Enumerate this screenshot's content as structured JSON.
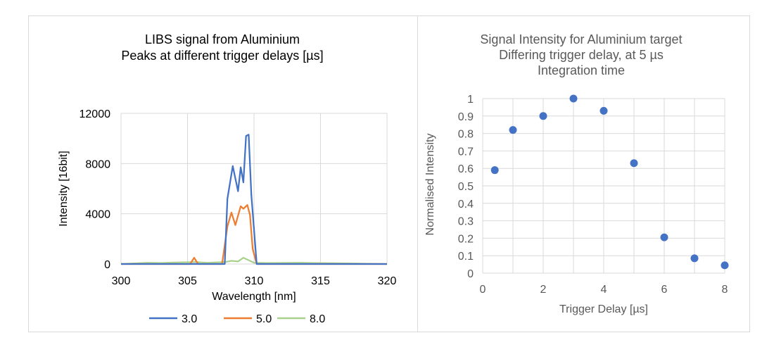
{
  "chart_data": [
    {
      "type": "line",
      "title": [
        "LIBS signal from Aluminium",
        "Peaks at different trigger delays [µs]"
      ],
      "xlabel": "Wavelength [nm]",
      "ylabel": "Intensity [16bit]",
      "xlim": [
        300,
        320
      ],
      "ylim": [
        0,
        12000
      ],
      "xticks": [
        300,
        305,
        310,
        315,
        320
      ],
      "yticks": [
        0,
        4000,
        8000,
        12000
      ],
      "xtick_labels": [
        "300",
        "305",
        "310",
        "315",
        "320"
      ],
      "ytick_labels": [
        "0",
        "4000",
        "8000",
        "12000"
      ],
      "grid": true,
      "legend": "bottom",
      "series": [
        {
          "name": "3.0",
          "color": "#4472c4",
          "x": [
            300,
            302,
            305.5,
            307.8,
            308.0,
            308.4,
            308.8,
            309.0,
            309.2,
            309.4,
            309.6,
            309.8,
            310.2,
            312,
            315,
            320
          ],
          "y": [
            0,
            0,
            0,
            0,
            5200,
            7800,
            5800,
            7700,
            6500,
            10200,
            10300,
            5500,
            0,
            0,
            0,
            0
          ]
        },
        {
          "name": "5.0",
          "color": "#ed7d31",
          "x": [
            300,
            305.2,
            305.5,
            305.8,
            307.6,
            308.0,
            308.3,
            308.6,
            309.0,
            309.2,
            309.5,
            309.7,
            309.9,
            310.2,
            312,
            320
          ],
          "y": [
            0,
            0,
            500,
            0,
            0,
            3000,
            4100,
            3100,
            4600,
            4400,
            4700,
            3900,
            1200,
            0,
            0,
            0
          ]
        },
        {
          "name": "8.0",
          "color": "#a9d18e",
          "x": [
            300,
            302,
            303,
            304,
            305.6,
            306.5,
            307.8,
            308.3,
            308.8,
            309.2,
            309.6,
            310,
            311,
            313.5,
            314.5,
            316,
            320
          ],
          "y": [
            0,
            100,
            80,
            120,
            150,
            100,
            150,
            250,
            200,
            500,
            300,
            100,
            80,
            100,
            80,
            60,
            0
          ]
        }
      ]
    },
    {
      "type": "scatter",
      "title": [
        "Signal Intensity for Aluminium  target",
        "Differing trigger delay, at 5 µs",
        "Integration time"
      ],
      "xlabel": "Trigger Delay  [µs]",
      "ylabel": "Normalised Intensity",
      "xlim": [
        0,
        8
      ],
      "ylim": [
        0,
        1
      ],
      "xticks": [
        0,
        2,
        4,
        6,
        8
      ],
      "yticks": [
        0,
        0.1,
        0.2,
        0.3,
        0.4,
        0.5,
        0.6,
        0.7,
        0.8,
        0.9,
        1
      ],
      "xtick_labels": [
        "0",
        "2",
        "4",
        "6",
        "8"
      ],
      "ytick_labels": [
        "0",
        "0.1",
        "0.2",
        "0.3",
        "0.4",
        "0.5",
        "0.6",
        "0.7",
        "0.8",
        "0.9",
        "1"
      ],
      "grid": true,
      "series": [
        {
          "color": "#4472c4",
          "x": [
            0.4,
            1,
            2,
            3,
            4,
            5,
            6,
            7,
            8
          ],
          "y": [
            0.59,
            0.82,
            0.9,
            1.0,
            0.93,
            0.63,
            0.205,
            0.085,
            0.045
          ]
        }
      ]
    }
  ]
}
